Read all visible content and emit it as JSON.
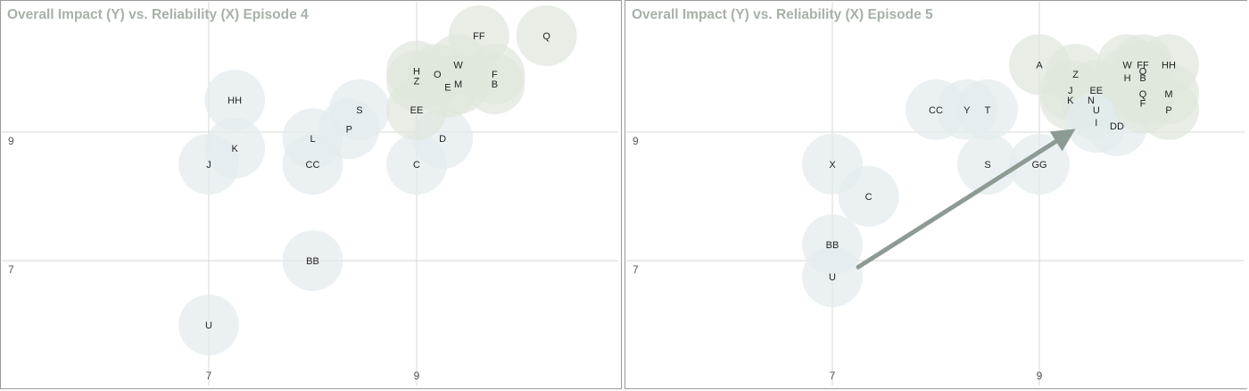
{
  "chart_data": [
    {
      "type": "scatter",
      "title": "Overall Impact (Y) vs. Reliability (X) Episode 4",
      "x_ticks": [
        "7",
        "9"
      ],
      "y_ticks": [
        "9",
        "7"
      ],
      "points": [
        {
          "label": "HH",
          "x": 7.25,
          "y": 9.5
        },
        {
          "label": "K",
          "x": 7.25,
          "y": 8.75
        },
        {
          "label": "J",
          "x": 7.0,
          "y": 8.5
        },
        {
          "label": "U",
          "x": 7.0,
          "y": 6.0
        },
        {
          "label": "BB",
          "x": 8.0,
          "y": 7.0
        },
        {
          "label": "CC",
          "x": 8.0,
          "y": 8.5
        },
        {
          "label": "L",
          "x": 8.0,
          "y": 8.9
        },
        {
          "label": "P",
          "x": 8.35,
          "y": 9.05
        },
        {
          "label": "S",
          "x": 8.45,
          "y": 9.35
        },
        {
          "label": "C",
          "x": 9.0,
          "y": 8.5
        },
        {
          "label": "D",
          "x": 9.25,
          "y": 8.9
        },
        {
          "label": "EE",
          "x": 9.0,
          "y": 9.35
        },
        {
          "label": "H",
          "x": 9.0,
          "y": 9.95
        },
        {
          "label": "Z",
          "x": 9.0,
          "y": 9.8
        },
        {
          "label": "O",
          "x": 9.2,
          "y": 9.9
        },
        {
          "label": "E",
          "x": 9.3,
          "y": 9.7
        },
        {
          "label": "M",
          "x": 9.4,
          "y": 9.75
        },
        {
          "label": "W",
          "x": 9.4,
          "y": 10.05
        },
        {
          "label": "FF",
          "x": 9.6,
          "y": 10.5
        },
        {
          "label": "F",
          "x": 9.75,
          "y": 9.9
        },
        {
          "label": "B",
          "x": 9.75,
          "y": 9.75
        },
        {
          "label": "Q",
          "x": 10.25,
          "y": 10.5
        }
      ]
    },
    {
      "type": "scatter",
      "title": "Overall Impact (Y) vs. Reliability (X) Episode 5",
      "x_ticks": [
        "7",
        "9"
      ],
      "y_ticks": [
        "9",
        "7"
      ],
      "points": [
        {
          "label": "X",
          "x": 7.0,
          "y": 8.5
        },
        {
          "label": "C",
          "x": 7.35,
          "y": 8.0
        },
        {
          "label": "BB",
          "x": 7.0,
          "y": 7.25
        },
        {
          "label": "U",
          "x": 7.0,
          "y": 6.75
        },
        {
          "label": "CC",
          "x": 8.0,
          "y": 9.35
        },
        {
          "label": "Y",
          "x": 8.3,
          "y": 9.35
        },
        {
          "label": "T",
          "x": 8.5,
          "y": 9.35
        },
        {
          "label": "S",
          "x": 8.5,
          "y": 8.5
        },
        {
          "label": "GG",
          "x": 9.0,
          "y": 8.5
        },
        {
          "label": "A",
          "x": 9.0,
          "y": 10.05
        },
        {
          "label": "Z",
          "x": 9.35,
          "y": 9.9
        },
        {
          "label": "J",
          "x": 9.3,
          "y": 9.65
        },
        {
          "label": "K",
          "x": 9.3,
          "y": 9.5
        },
        {
          "label": "EE",
          "x": 9.55,
          "y": 9.65
        },
        {
          "label": "N",
          "x": 9.5,
          "y": 9.5
        },
        {
          "label": "U",
          "x": 9.55,
          "y": 9.35
        },
        {
          "label": "I",
          "x": 9.55,
          "y": 9.15
        },
        {
          "label": "DD",
          "x": 9.75,
          "y": 9.1
        },
        {
          "label": "H",
          "x": 9.85,
          "y": 9.85
        },
        {
          "label": "O",
          "x": 10.0,
          "y": 9.95
        },
        {
          "label": "B",
          "x": 10.0,
          "y": 9.85
        },
        {
          "label": "W",
          "x": 9.85,
          "y": 10.05
        },
        {
          "label": "FF",
          "x": 10.0,
          "y": 10.05
        },
        {
          "label": "HH",
          "x": 10.25,
          "y": 10.05
        },
        {
          "label": "Q",
          "x": 10.0,
          "y": 9.6
        },
        {
          "label": "M",
          "x": 10.25,
          "y": 9.6
        },
        {
          "label": "F",
          "x": 10.0,
          "y": 9.45
        },
        {
          "label": "P",
          "x": 10.25,
          "y": 9.35
        }
      ],
      "arrow": {
        "from": [
          7.25,
          6.9
        ],
        "to": [
          9.35,
          9.05
        ]
      }
    }
  ]
}
